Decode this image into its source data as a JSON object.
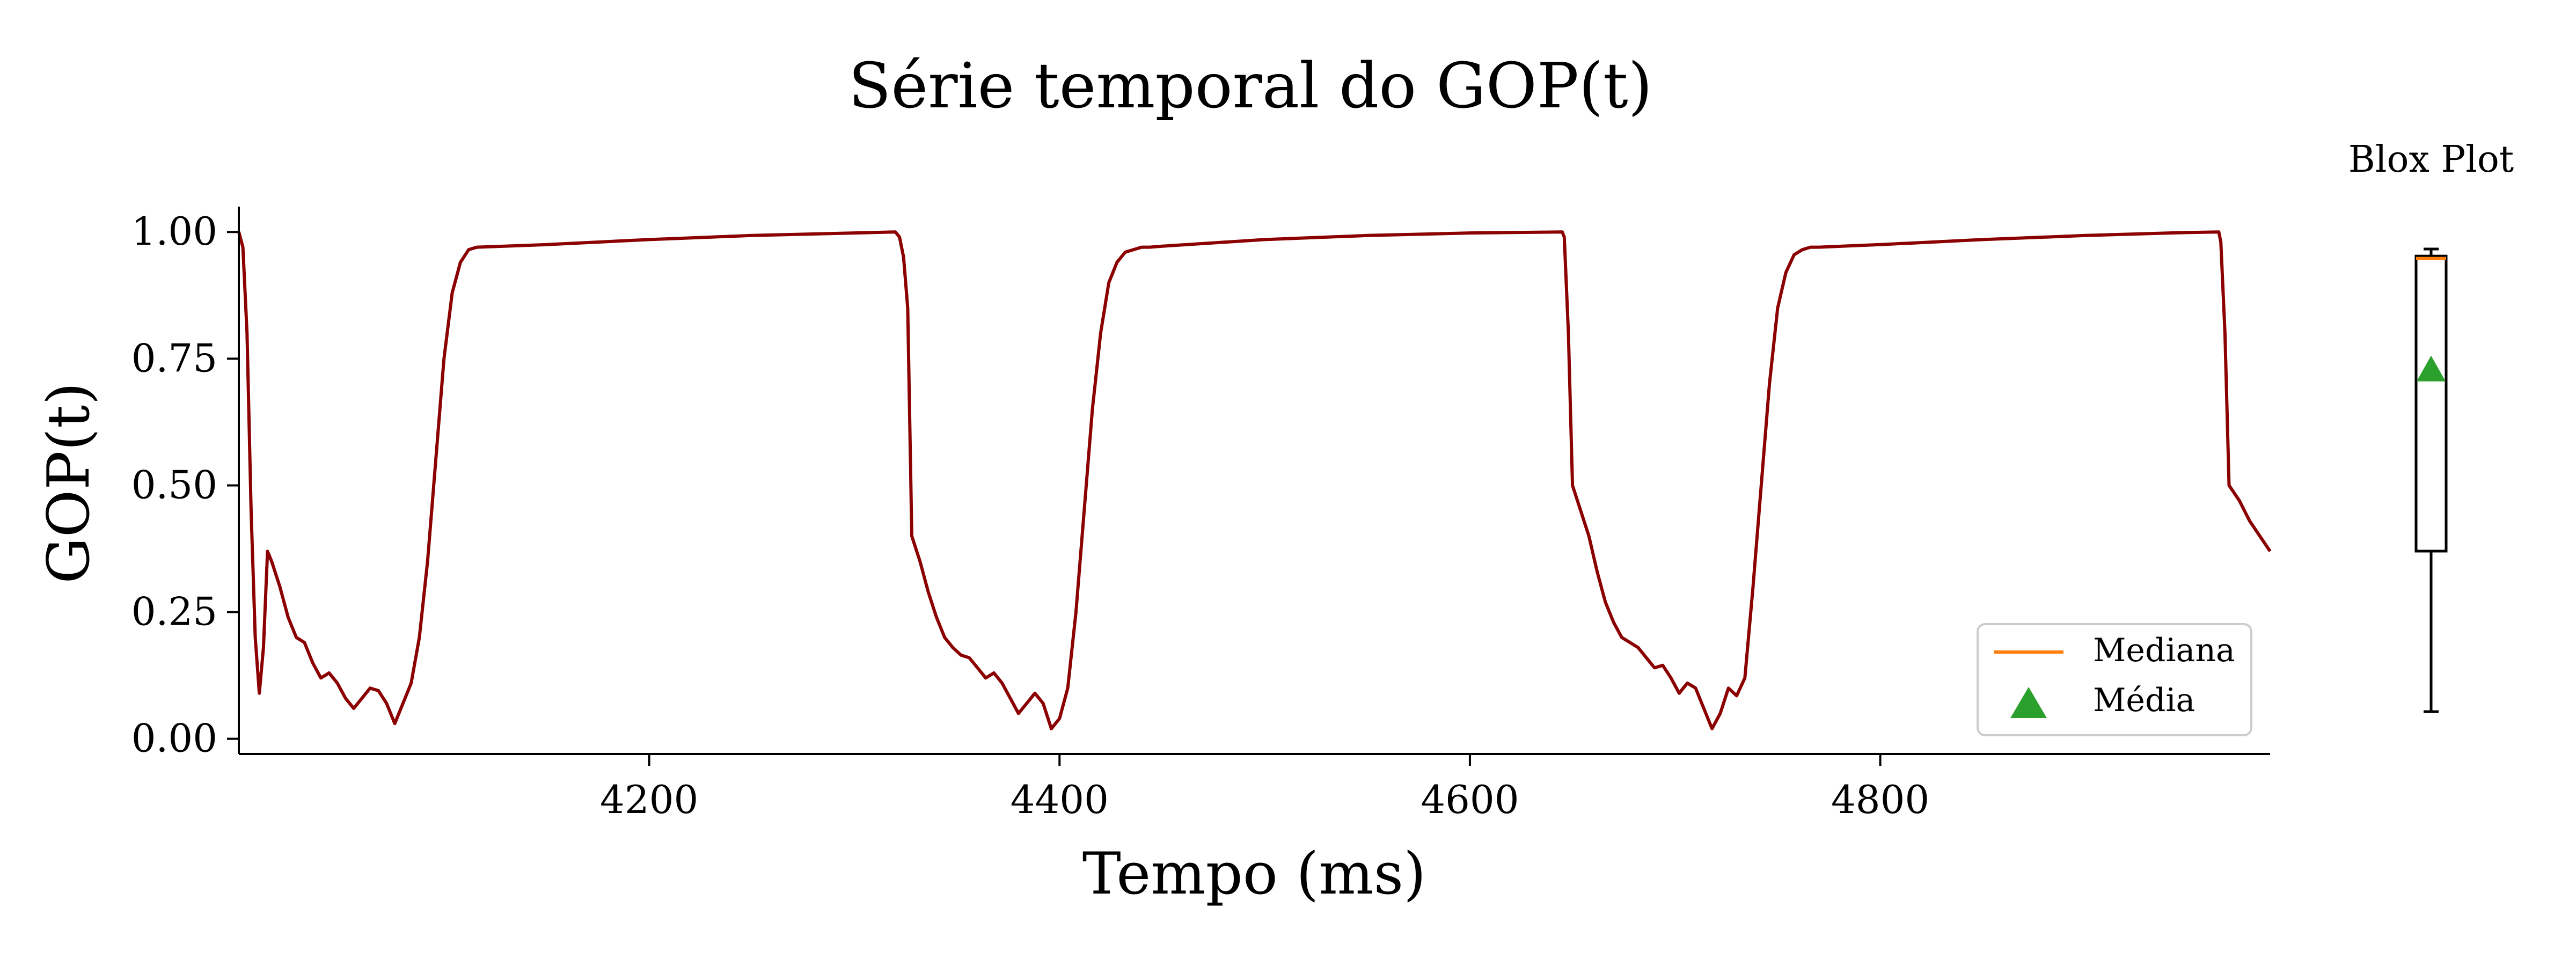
{
  "chart_data": [
    {
      "type": "line",
      "title": "Série temporal do GOP(t)",
      "xlabel": "Tempo (ms)",
      "ylabel": "GOP(t)",
      "xlim": [
        4000,
        4990
      ],
      "ylim": [
        -0.03,
        1.05
      ],
      "xticks": [
        4200,
        4400,
        4600,
        4800
      ],
      "yticks": [
        0.0,
        0.25,
        0.5,
        0.75,
        1.0
      ],
      "ytick_labels": [
        "0.00",
        "0.25",
        "0.50",
        "0.75",
        "1.00"
      ],
      "grid": false,
      "legend_position": "bottom-right",
      "legend": [
        {
          "label": "Mediana",
          "marker": "line",
          "color": "#ff7f0e"
        },
        {
          "label": "Média",
          "marker": "triangle",
          "color": "#2ca02c"
        }
      ],
      "series": [
        {
          "color": "#8b0000",
          "x": [
            4000,
            4002,
            4004,
            4006,
            4008,
            4010,
            4012,
            4014,
            4016,
            4020,
            4024,
            4028,
            4032,
            4036,
            4040,
            4044,
            4048,
            4052,
            4056,
            4060,
            4064,
            4068,
            4072,
            4076,
            4080,
            4084,
            4088,
            4092,
            4096,
            4100,
            4104,
            4108,
            4112,
            4116,
            4150,
            4200,
            4250,
            4300,
            4320,
            4322,
            4324,
            4326,
            4328,
            4332,
            4336,
            4340,
            4344,
            4348,
            4352,
            4356,
            4360,
            4364,
            4368,
            4372,
            4376,
            4380,
            4384,
            4388,
            4392,
            4396,
            4400,
            4404,
            4408,
            4412,
            4416,
            4420,
            4424,
            4428,
            4432,
            4436,
            4440,
            4444,
            4450,
            4500,
            4550,
            4600,
            4645,
            4646,
            4648,
            4650,
            4654,
            4658,
            4662,
            4666,
            4670,
            4674,
            4678,
            4682,
            4686,
            4690,
            4694,
            4698,
            4702,
            4706,
            4710,
            4714,
            4718,
            4722,
            4726,
            4730,
            4734,
            4738,
            4742,
            4746,
            4750,
            4754,
            4758,
            4762,
            4766,
            4770,
            4800,
            4850,
            4900,
            4950,
            4965,
            4966,
            4968,
            4970,
            4975,
            4980,
            4985,
            4990
          ],
          "y": [
            1.0,
            0.97,
            0.8,
            0.45,
            0.2,
            0.09,
            0.18,
            0.37,
            0.35,
            0.3,
            0.24,
            0.2,
            0.19,
            0.15,
            0.12,
            0.13,
            0.11,
            0.08,
            0.06,
            0.08,
            0.1,
            0.095,
            0.07,
            0.03,
            0.07,
            0.11,
            0.2,
            0.35,
            0.55,
            0.75,
            0.88,
            0.94,
            0.965,
            0.97,
            0.975,
            0.985,
            0.993,
            0.998,
            1.0,
            0.99,
            0.95,
            0.85,
            0.4,
            0.35,
            0.29,
            0.24,
            0.2,
            0.18,
            0.165,
            0.16,
            0.14,
            0.12,
            0.13,
            0.11,
            0.08,
            0.05,
            0.07,
            0.09,
            0.07,
            0.02,
            0.04,
            0.1,
            0.25,
            0.45,
            0.65,
            0.8,
            0.9,
            0.94,
            0.96,
            0.965,
            0.97,
            0.97,
            0.972,
            0.985,
            0.993,
            0.998,
            1.0,
            0.99,
            0.8,
            0.5,
            0.45,
            0.4,
            0.33,
            0.27,
            0.23,
            0.2,
            0.19,
            0.18,
            0.16,
            0.14,
            0.145,
            0.12,
            0.09,
            0.11,
            0.1,
            0.06,
            0.02,
            0.05,
            0.1,
            0.085,
            0.12,
            0.3,
            0.5,
            0.7,
            0.85,
            0.92,
            0.955,
            0.965,
            0.97,
            0.97,
            0.975,
            0.985,
            0.993,
            0.999,
            1.0,
            0.98,
            0.8,
            0.5,
            0.47,
            0.43,
            0.4,
            0.37
          ]
        }
      ]
    },
    {
      "type": "box",
      "title": "Blox Plot",
      "ylim": [
        -0.03,
        1.05
      ],
      "whisker_low": 0.02,
      "q1": 0.36,
      "median": 0.98,
      "q3": 0.985,
      "whisker_high": 1.0,
      "mean": 0.74,
      "median_color": "#ff7f0e",
      "mean_color": "#2ca02c"
    }
  ]
}
